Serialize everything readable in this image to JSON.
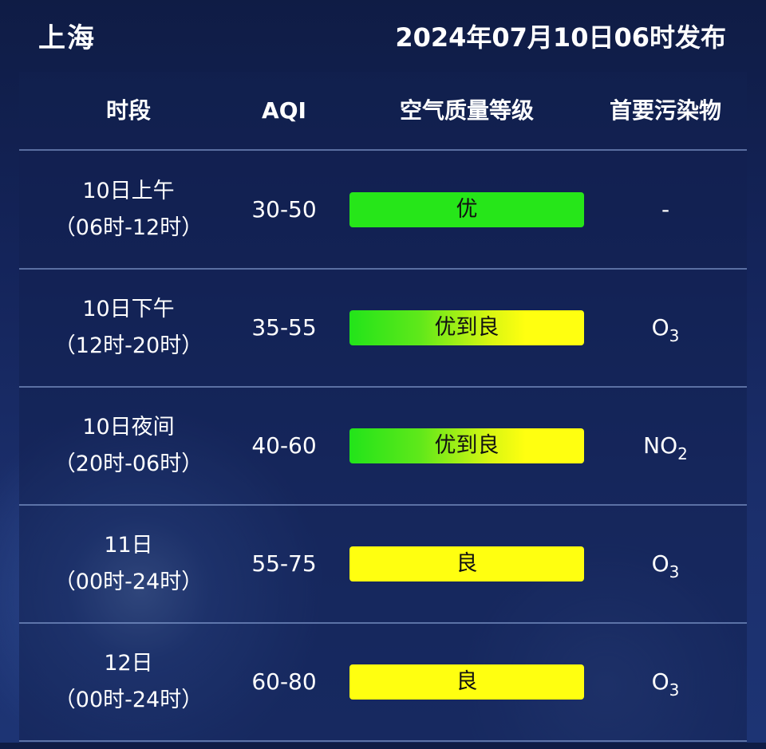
{
  "header": {
    "city": "上海",
    "release_time": "2024年07月10日06时发布"
  },
  "table": {
    "columns": [
      "时段",
      "AQI",
      "空气质量等级",
      "首要污染物"
    ],
    "rows": [
      {
        "period_line1": "10日上午",
        "period_line2": "（06时-12时）",
        "aqi": "30-50",
        "level": "优",
        "level_style": "green",
        "pollutant_main": "-",
        "pollutant_sub": ""
      },
      {
        "period_line1": "10日下午",
        "period_line2": "（12时-20时）",
        "aqi": "35-55",
        "level": "优到良",
        "level_style": "mix",
        "pollutant_main": "O",
        "pollutant_sub": "3"
      },
      {
        "period_line1": "10日夜间",
        "period_line2": "（20时-06时）",
        "aqi": "40-60",
        "level": "优到良",
        "level_style": "mix",
        "pollutant_main": "NO",
        "pollutant_sub": "2"
      },
      {
        "period_line1": "11日",
        "period_line2": "（00时-24时）",
        "aqi": "55-75",
        "level": "良",
        "level_style": "yellow",
        "pollutant_main": "O",
        "pollutant_sub": "3"
      },
      {
        "period_line1": "12日",
        "period_line2": "（00时-24时）",
        "aqi": "60-80",
        "level": "良",
        "level_style": "yellow",
        "pollutant_main": "O",
        "pollutant_sub": "3"
      }
    ]
  },
  "colors": {
    "excellent": "#26e619",
    "good": "#ffff10",
    "background": "#14245a"
  }
}
